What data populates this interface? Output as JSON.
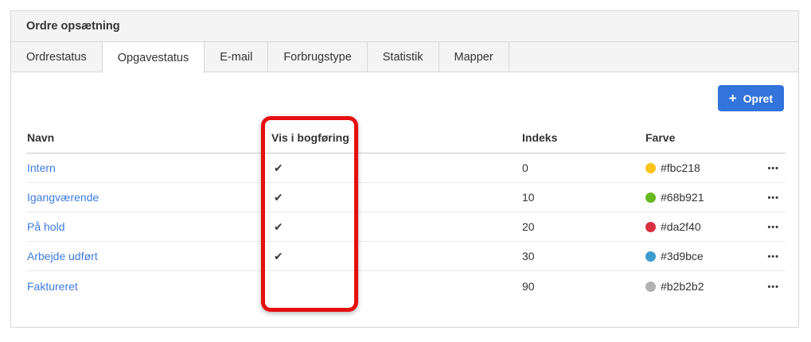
{
  "panel": {
    "title": "Ordre opsætning"
  },
  "tabs": [
    {
      "label": "Ordrestatus",
      "active": false
    },
    {
      "label": "Opgavestatus",
      "active": true
    },
    {
      "label": "E-mail",
      "active": false
    },
    {
      "label": "Forbrugstype",
      "active": false
    },
    {
      "label": "Statistik",
      "active": false
    },
    {
      "label": "Mapper",
      "active": false
    }
  ],
  "toolbar": {
    "create_label": "Opret",
    "plus_icon": "+"
  },
  "table": {
    "columns": [
      "Navn",
      "Vis i bogføring",
      "Indeks",
      "Farve"
    ],
    "menu_icon": "•••",
    "rows": [
      {
        "name": "Intern",
        "check": "✔",
        "indeks": "0",
        "farve": "#fbc218"
      },
      {
        "name": "Igangværende",
        "check": "✔",
        "indeks": "10",
        "farve": "#68b921"
      },
      {
        "name": "På hold",
        "check": "✔",
        "indeks": "20",
        "farve": "#da2f40"
      },
      {
        "name": "Arbejde udført",
        "check": "✔",
        "indeks": "30",
        "farve": "#3d9bce"
      },
      {
        "name": "Faktureret",
        "check": "",
        "indeks": "90",
        "farve": "#b2b2b2"
      }
    ]
  },
  "annotation": {
    "highlighted_column": "Vis i bogføring",
    "highlight_color": "#e60f0f"
  },
  "colors": {
    "accent_blue": "#3273dc",
    "link_blue": "#3d7be0",
    "header_gray": "#f4f4f4"
  }
}
